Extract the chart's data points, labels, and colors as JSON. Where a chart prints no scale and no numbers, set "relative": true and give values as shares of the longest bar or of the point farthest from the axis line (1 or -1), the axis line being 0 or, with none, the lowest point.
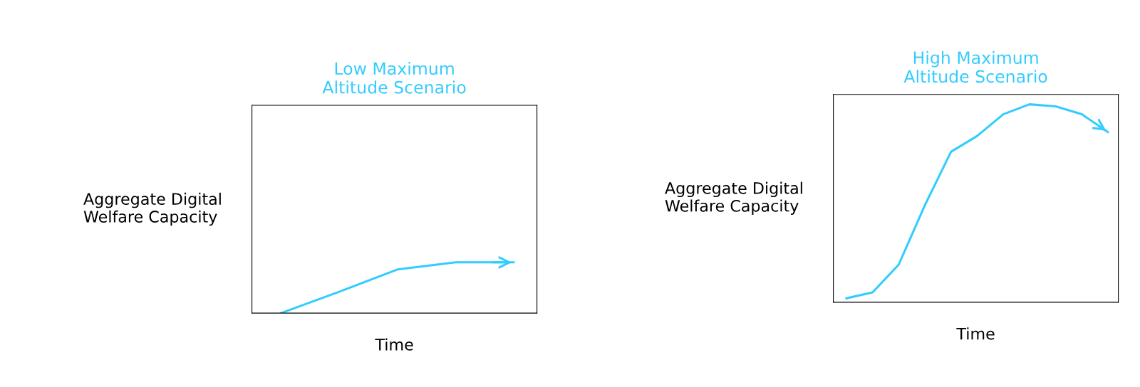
{
  "chart_data": [
    {
      "type": "line",
      "title": "Low Maximum\nAltitude Scenario",
      "xlabel": "Time",
      "ylabel": "Aggregate Digital\nWelfare Capacity",
      "relative": true,
      "grid": false,
      "legend": false,
      "marker": "none",
      "line_style": "solid",
      "categories": [
        null,
        null,
        null,
        null,
        null
      ],
      "series": [
        {
          "color": "#33ccff",
          "values": [
            0,
            0.42,
            0.86,
            1,
            1
          ]
        }
      ]
    },
    {
      "type": "line",
      "title": "High Maximum\nAltitude Scenario",
      "xlabel": "Time",
      "ylabel": "Aggregate Digital\nWelfare Capacity",
      "relative": true,
      "grid": false,
      "legend": false,
      "marker": "none",
      "line_style": "solid",
      "categories": [
        null,
        null,
        null,
        null,
        null,
        null,
        null,
        null,
        null,
        null,
        null
      ],
      "series": [
        {
          "color": "#33ccff",
          "values": [
            0.02,
            0.05,
            0.19,
            0.49,
            0.76,
            0.84,
            0.95,
            1,
            0.99,
            0.95,
            0.86
          ]
        }
      ]
    }
  ]
}
